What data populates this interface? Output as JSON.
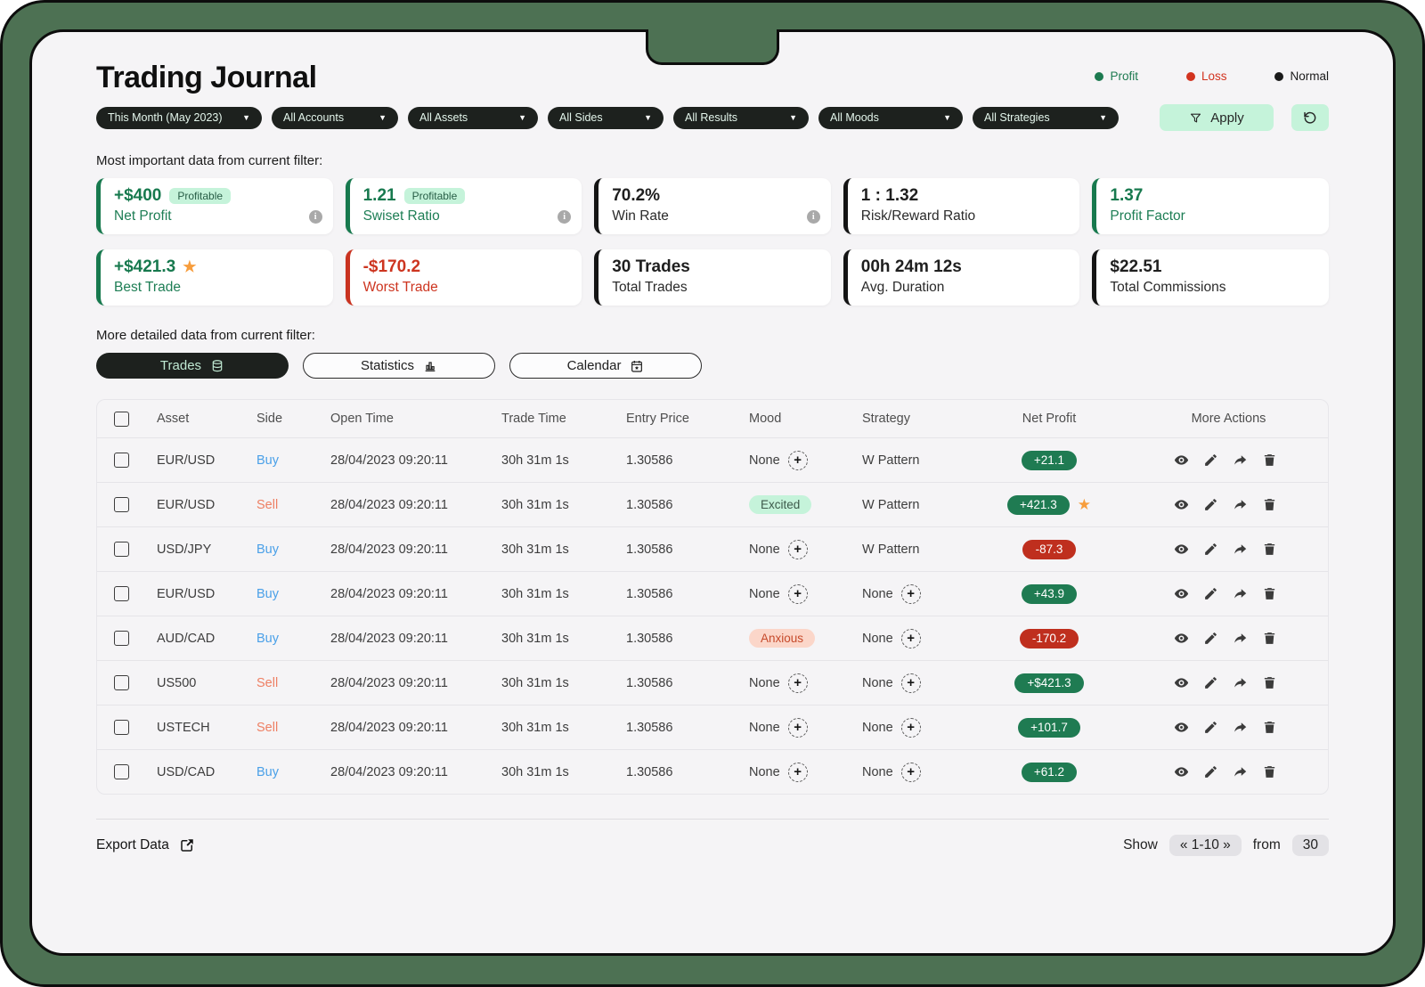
{
  "colors": {
    "frame_green": "#4d7153",
    "panel_bg": "#f5f4f6",
    "accent_green": "#17794e",
    "accent_red": "#c93320",
    "mint": "#c5f3da",
    "pill_green": "#1f7b52",
    "pill_red": "#bf2f1e",
    "buy_blue": "#4aa0e8",
    "sell_salmon": "#ee8064",
    "star_orange": "#f79d3c",
    "dark_pill": "#1d211e",
    "dark_pill_text": "#e4f6ec"
  },
  "header": {
    "title": "Trading Journal",
    "legend": [
      {
        "label": "Profit",
        "color": "#1d7a50"
      },
      {
        "label": "Loss",
        "color": "#d2331f"
      },
      {
        "label": "Normal",
        "color": "#1a1a1a"
      }
    ]
  },
  "filters": {
    "dropdowns": [
      "This Month (May 2023)",
      "All Accounts",
      "All Assets",
      "All Sides",
      "All Results",
      "All Moods",
      "All Strategies"
    ],
    "apply_label": "Apply"
  },
  "section_labels": {
    "important": "Most important data from current filter:",
    "detailed": "More detailed data from current filter:"
  },
  "stats": [
    {
      "value": "+$400",
      "label": "Net Profit",
      "badge": "Profitable",
      "tone": "green",
      "info": true
    },
    {
      "value": "1.21",
      "label": "Swiset Ratio",
      "badge": "Profitable",
      "tone": "green",
      "info": true
    },
    {
      "value": "70.2%",
      "label": "Win Rate",
      "tone": "dark",
      "info": true
    },
    {
      "value": "1 : 1.32",
      "label": "Risk/Reward Ratio",
      "tone": "dark"
    },
    {
      "value": "1.37",
      "label": "Profit Factor",
      "tone": "green"
    },
    {
      "value": "+$421.3",
      "label": "Best Trade",
      "tone": "green",
      "star": true
    },
    {
      "value": "-$170.2",
      "label": "Worst Trade",
      "tone": "red"
    },
    {
      "value": "30 Trades",
      "label": "Total Trades",
      "tone": "dark"
    },
    {
      "value": "00h 24m 12s",
      "label": "Avg. Duration",
      "tone": "dark"
    },
    {
      "value": "$22.51",
      "label": "Total Commissions",
      "tone": "dark"
    }
  ],
  "tabs": [
    {
      "label": "Trades",
      "active": true
    },
    {
      "label": "Statistics",
      "active": false
    },
    {
      "label": "Calendar",
      "active": false
    }
  ],
  "table": {
    "columns": [
      "Asset",
      "Side",
      "Open Time",
      "Trade Time",
      "Entry Price",
      "Mood",
      "Strategy",
      "Net Profit",
      "More Actions"
    ],
    "none_label": "None",
    "rows": [
      {
        "asset": "EUR/USD",
        "side": "Buy",
        "open_time": "28/04/2023 09:20:11",
        "trade_time": "30h 31m 1s",
        "entry_price": "1.30586",
        "mood": null,
        "mood_tone": null,
        "strategy": "W Pattern",
        "net_profit": "+21.1",
        "profit_positive": true,
        "starred": false
      },
      {
        "asset": "EUR/USD",
        "side": "Sell",
        "open_time": "28/04/2023 09:20:11",
        "trade_time": "30h 31m 1s",
        "entry_price": "1.30586",
        "mood": "Excited",
        "mood_tone": "positive",
        "strategy": "W Pattern",
        "net_profit": "+421.3",
        "profit_positive": true,
        "starred": true
      },
      {
        "asset": "USD/JPY",
        "side": "Buy",
        "open_time": "28/04/2023 09:20:11",
        "trade_time": "30h 31m 1s",
        "entry_price": "1.30586",
        "mood": null,
        "mood_tone": null,
        "strategy": "W Pattern",
        "net_profit": "-87.3",
        "profit_positive": false,
        "starred": false
      },
      {
        "asset": "EUR/USD",
        "side": "Buy",
        "open_time": "28/04/2023 09:20:11",
        "trade_time": "30h 31m 1s",
        "entry_price": "1.30586",
        "mood": null,
        "mood_tone": null,
        "strategy": null,
        "net_profit": "+43.9",
        "profit_positive": true,
        "starred": false
      },
      {
        "asset": "AUD/CAD",
        "side": "Buy",
        "open_time": "28/04/2023 09:20:11",
        "trade_time": "30h 31m 1s",
        "entry_price": "1.30586",
        "mood": "Anxious",
        "mood_tone": "negative",
        "strategy": null,
        "net_profit": "-170.2",
        "profit_positive": false,
        "starred": false
      },
      {
        "asset": "US500",
        "side": "Sell",
        "open_time": "28/04/2023 09:20:11",
        "trade_time": "30h 31m 1s",
        "entry_price": "1.30586",
        "mood": null,
        "mood_tone": null,
        "strategy": null,
        "net_profit": "+$421.3",
        "profit_positive": true,
        "starred": false
      },
      {
        "asset": "USTECH",
        "side": "Sell",
        "open_time": "28/04/2023 09:20:11",
        "trade_time": "30h 31m 1s",
        "entry_price": "1.30586",
        "mood": null,
        "mood_tone": null,
        "strategy": null,
        "net_profit": "+101.7",
        "profit_positive": true,
        "starred": false
      },
      {
        "asset": "USD/CAD",
        "side": "Buy",
        "open_time": "28/04/2023 09:20:11",
        "trade_time": "30h 31m 1s",
        "entry_price": "1.30586",
        "mood": null,
        "mood_tone": null,
        "strategy": null,
        "net_profit": "+61.2",
        "profit_positive": true,
        "starred": false
      }
    ]
  },
  "footer": {
    "export_label": "Export Data",
    "show_label": "Show",
    "page_range": "« 1-10 »",
    "from_label": "from",
    "total": "30"
  }
}
